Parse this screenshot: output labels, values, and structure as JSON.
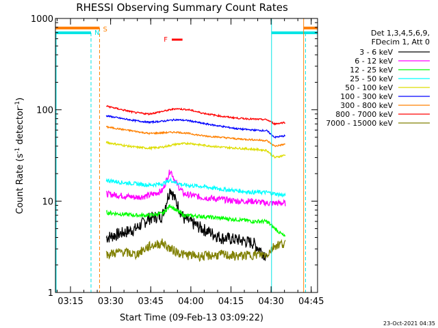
{
  "chart_data": {
    "type": "line",
    "title": "RHESSI Observing Summary Count Rates",
    "xlabel": "Start Time (09-Feb-13 03:09:22)",
    "ylabel": "Count Rate (s",
    "ylabel_sup": "-1",
    "ylabel_rest": " detector",
    "ylabel_sup2": "-1",
    "ylabel_close": ")",
    "yscale": "log",
    "ylim": [
      1,
      1000
    ],
    "xlim_minutes": [
      0,
      98
    ],
    "x_ticks": [
      "03:15",
      "03:30",
      "03:45",
      "04:00",
      "04:15",
      "04:30",
      "04:45"
    ],
    "y_ticks": [
      "1",
      "10",
      "100",
      "1000"
    ],
    "legend_header": [
      "Det 1,3,4,5,6,9,",
      "FDecim 1, Att 0"
    ],
    "legend_position": "right",
    "stamp": "23-Oct-2021 04:35",
    "flag_markers": [
      {
        "label": "S",
        "color": "#ff8000"
      },
      {
        "label": "N",
        "color": "#00e5e5"
      },
      {
        "label": "F",
        "color": "#ff0000"
      }
    ],
    "series": [
      {
        "name": "3 - 6 keV",
        "color": "#000000",
        "values": [
          [
            19,
            4.0
          ],
          [
            25,
            4.5
          ],
          [
            30,
            5.0
          ],
          [
            35,
            6.5
          ],
          [
            40,
            7.0
          ],
          [
            43,
            14
          ],
          [
            45,
            10
          ],
          [
            48,
            6.5
          ],
          [
            55,
            5.0
          ],
          [
            62,
            4.0
          ],
          [
            68,
            3.8
          ],
          [
            74,
            3.5
          ],
          [
            79,
            2.5
          ]
        ]
      },
      {
        "name": "6 - 12 keV",
        "color": "#ff00ff",
        "values": [
          [
            19,
            12
          ],
          [
            25,
            11.5
          ],
          [
            30,
            11
          ],
          [
            35,
            11.5
          ],
          [
            40,
            13
          ],
          [
            43,
            22
          ],
          [
            45,
            16
          ],
          [
            48,
            12
          ],
          [
            55,
            11
          ],
          [
            62,
            10.5
          ],
          [
            68,
            10
          ],
          [
            74,
            10
          ],
          [
            79,
            9.5
          ],
          [
            86,
            9.5
          ]
        ]
      },
      {
        "name": "12 - 25 keV",
        "color": "#00ff00",
        "values": [
          [
            19,
            7.5
          ],
          [
            25,
            7.2
          ],
          [
            30,
            7.0
          ],
          [
            35,
            7.0
          ],
          [
            40,
            7.3
          ],
          [
            43,
            9.0
          ],
          [
            45,
            8.0
          ],
          [
            48,
            7.0
          ],
          [
            55,
            6.8
          ],
          [
            62,
            6.5
          ],
          [
            68,
            6.3
          ],
          [
            74,
            6.0
          ],
          [
            79,
            6.0
          ],
          [
            86,
            4.0
          ]
        ]
      },
      {
        "name": "25 - 50 keV",
        "color": "#00ffff",
        "values": [
          [
            19,
            17
          ],
          [
            25,
            16
          ],
          [
            30,
            15.5
          ],
          [
            35,
            15
          ],
          [
            40,
            15.5
          ],
          [
            43,
            17
          ],
          [
            45,
            16
          ],
          [
            48,
            15
          ],
          [
            55,
            14.5
          ],
          [
            62,
            13.5
          ],
          [
            68,
            13
          ],
          [
            74,
            12.5
          ],
          [
            79,
            12.5
          ],
          [
            86,
            11.5
          ]
        ]
      },
      {
        "name": "50 - 100 keV",
        "color": "#dddd00",
        "values": [
          [
            19,
            44
          ],
          [
            25,
            41
          ],
          [
            30,
            39
          ],
          [
            35,
            38
          ],
          [
            40,
            39
          ],
          [
            45,
            42
          ],
          [
            50,
            43
          ],
          [
            55,
            41
          ],
          [
            62,
            39
          ],
          [
            68,
            38
          ],
          [
            74,
            37
          ],
          [
            79,
            36
          ],
          [
            82,
            30
          ],
          [
            86,
            32
          ]
        ]
      },
      {
        "name": "100 - 300 keV",
        "color": "#0000ff",
        "values": [
          [
            19,
            86
          ],
          [
            25,
            80
          ],
          [
            30,
            76
          ],
          [
            35,
            73
          ],
          [
            40,
            75
          ],
          [
            45,
            78
          ],
          [
            50,
            76
          ],
          [
            55,
            71
          ],
          [
            62,
            66
          ],
          [
            68,
            62
          ],
          [
            74,
            60
          ],
          [
            79,
            59
          ],
          [
            82,
            50
          ],
          [
            86,
            52
          ]
        ]
      },
      {
        "name": "300 - 800 keV",
        "color": "#ff8000",
        "values": [
          [
            19,
            65
          ],
          [
            25,
            61
          ],
          [
            30,
            58
          ],
          [
            35,
            55
          ],
          [
            40,
            56
          ],
          [
            45,
            57
          ],
          [
            50,
            55
          ],
          [
            55,
            52
          ],
          [
            62,
            50
          ],
          [
            68,
            48
          ],
          [
            74,
            47
          ],
          [
            79,
            46
          ],
          [
            82,
            40
          ],
          [
            86,
            42
          ]
        ]
      },
      {
        "name": "800 - 7000 keV",
        "color": "#ff0000",
        "values": [
          [
            19,
            110
          ],
          [
            25,
            100
          ],
          [
            30,
            93
          ],
          [
            35,
            90
          ],
          [
            40,
            96
          ],
          [
            45,
            103
          ],
          [
            50,
            100
          ],
          [
            55,
            92
          ],
          [
            62,
            85
          ],
          [
            68,
            81
          ],
          [
            74,
            79
          ],
          [
            79,
            78
          ],
          [
            82,
            70
          ],
          [
            86,
            73
          ]
        ]
      },
      {
        "name": "7000 - 15000 keV",
        "color": "#808000",
        "values": [
          [
            19,
            2.6
          ],
          [
            25,
            2.8
          ],
          [
            30,
            2.6
          ],
          [
            35,
            3.2
          ],
          [
            40,
            3.5
          ],
          [
            43,
            3.0
          ],
          [
            48,
            2.6
          ],
          [
            55,
            2.5
          ],
          [
            62,
            2.6
          ],
          [
            68,
            2.5
          ],
          [
            74,
            2.6
          ],
          [
            79,
            2.6
          ],
          [
            82,
            3.3
          ],
          [
            86,
            3.5
          ]
        ]
      }
    ]
  }
}
